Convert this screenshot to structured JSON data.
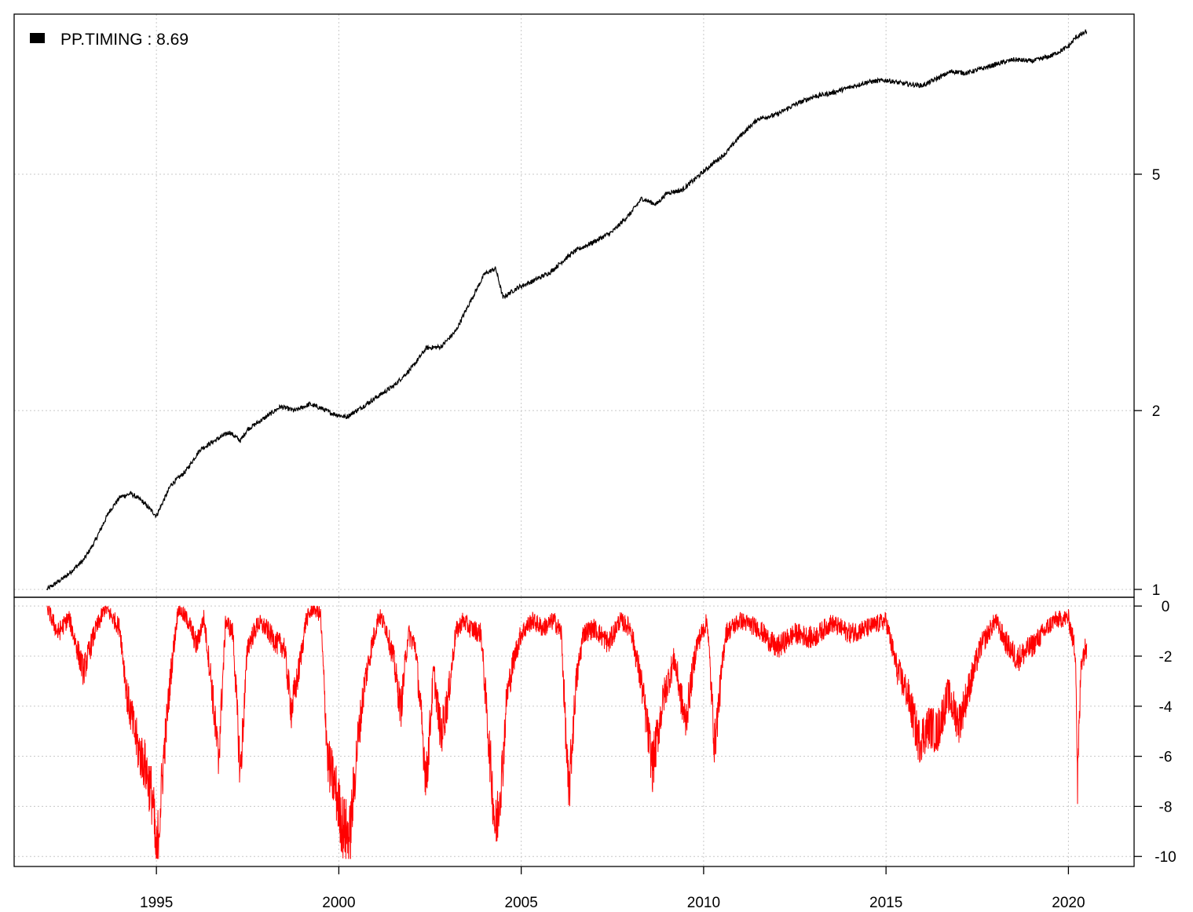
{
  "chart_data": [
    {
      "type": "line",
      "panel": "cumulative-performance",
      "yscale": "log",
      "ylim": [
        0.97,
        9.3
      ],
      "yticks": [
        1,
        2,
        5
      ],
      "ytick_labels": [
        "1",
        "2",
        "5"
      ],
      "grid": true,
      "legend": {
        "placement": "top-left",
        "label": "PP.TIMING : 8.69",
        "color": "#000000"
      },
      "series": [
        {
          "name": "PP.TIMING",
          "color": "#000000",
          "x": [
            1992.0,
            1992.5,
            1993.0,
            1993.3,
            1993.7,
            1994.0,
            1994.3,
            1994.6,
            1995.0,
            1995.4,
            1995.8,
            1996.2,
            1996.6,
            1997.0,
            1997.3,
            1997.5,
            1998.0,
            1998.4,
            1998.8,
            1999.2,
            1999.5,
            1999.8,
            2000.2,
            2000.6,
            2001.0,
            2001.5,
            2002.0,
            2002.4,
            2002.8,
            2003.2,
            2003.6,
            2004.0,
            2004.3,
            2004.5,
            2004.9,
            2005.3,
            2005.8,
            2006.2,
            2006.5,
            2007.0,
            2007.5,
            2008.0,
            2008.3,
            2008.7,
            2009.0,
            2009.4,
            2009.8,
            2010.2,
            2010.6,
            2011.0,
            2011.5,
            2012.0,
            2012.5,
            2013.0,
            2013.5,
            2014.0,
            2014.5,
            2015.0,
            2015.5,
            2016.0,
            2016.5,
            2016.8,
            2017.2,
            2017.6,
            2018.0,
            2018.5,
            2019.0,
            2019.5,
            2020.0,
            2020.2,
            2020.5
          ],
          "values": [
            1.0,
            1.05,
            1.12,
            1.2,
            1.35,
            1.43,
            1.45,
            1.41,
            1.33,
            1.5,
            1.58,
            1.72,
            1.78,
            1.84,
            1.78,
            1.86,
            1.95,
            2.03,
            2.0,
            2.05,
            2.02,
            1.98,
            1.95,
            2.02,
            2.1,
            2.2,
            2.36,
            2.55,
            2.56,
            2.72,
            3.05,
            3.4,
            3.47,
            3.1,
            3.22,
            3.3,
            3.42,
            3.6,
            3.72,
            3.85,
            4.0,
            4.3,
            4.55,
            4.45,
            4.65,
            4.7,
            4.93,
            5.18,
            5.42,
            5.8,
            6.2,
            6.3,
            6.55,
            6.75,
            6.85,
            7.0,
            7.15,
            7.2,
            7.1,
            7.05,
            7.3,
            7.45,
            7.4,
            7.52,
            7.65,
            7.8,
            7.75,
            7.9,
            8.2,
            8.5,
            8.69
          ]
        }
      ]
    },
    {
      "type": "area",
      "panel": "drawdown",
      "ylim": [
        -10.4,
        0.35
      ],
      "yticks": [
        0,
        -2,
        -4,
        -6,
        -8,
        -10
      ],
      "ytick_labels": [
        "0",
        "-2",
        "-4",
        "-6",
        "-8",
        "-10"
      ],
      "grid": true,
      "series": [
        {
          "name": "PP.TIMING drawdown",
          "color": "#ff0000",
          "x": [
            1992.0,
            1992.3,
            1992.6,
            1993.0,
            1993.3,
            1993.6,
            1994.0,
            1994.2,
            1994.5,
            1994.7,
            1994.9,
            1995.0,
            1995.2,
            1995.4,
            1995.6,
            1995.9,
            1996.1,
            1996.3,
            1996.5,
            1996.7,
            1996.9,
            1997.1,
            1997.3,
            1997.5,
            1997.8,
            1998.0,
            1998.3,
            1998.5,
            1998.7,
            1998.9,
            1999.1,
            1999.3,
            1999.5,
            1999.7,
            1999.9,
            2000.1,
            2000.3,
            2000.5,
            2000.7,
            2000.9,
            2001.1,
            2001.3,
            2001.5,
            2001.7,
            2001.9,
            2002.1,
            2002.4,
            2002.6,
            2002.8,
            2003.0,
            2003.2,
            2003.4,
            2003.6,
            2003.9,
            2004.1,
            2004.3,
            2004.5,
            2004.6,
            2004.8,
            2005.0,
            2005.3,
            2005.6,
            2005.9,
            2006.1,
            2006.3,
            2006.5,
            2006.7,
            2007.0,
            2007.4,
            2007.7,
            2008.0,
            2008.3,
            2008.6,
            2008.9,
            2009.2,
            2009.5,
            2009.8,
            2010.1,
            2010.3,
            2010.6,
            2011.0,
            2011.5,
            2012.0,
            2012.5,
            2013.0,
            2013.5,
            2014.0,
            2014.5,
            2015.0,
            2015.3,
            2015.6,
            2015.9,
            2016.2,
            2016.4,
            2016.7,
            2017.0,
            2017.3,
            2017.6,
            2018.0,
            2018.3,
            2018.6,
            2019.0,
            2019.3,
            2019.6,
            2020.0,
            2020.2,
            2020.25,
            2020.35,
            2020.5
          ],
          "values": [
            0,
            -1.0,
            -0.4,
            -2.5,
            -1.0,
            0,
            -0.8,
            -3.5,
            -5.5,
            -6.2,
            -7.5,
            -10.0,
            -5.8,
            -2.5,
            0,
            -0.6,
            -1.5,
            -0.4,
            -2.8,
            -6.0,
            -0.5,
            -1.0,
            -6.5,
            -1.5,
            -0.6,
            -0.8,
            -1.4,
            -1.5,
            -4.0,
            -2.5,
            -0.5,
            0,
            -0.3,
            -6.0,
            -7.0,
            -8.5,
            -9.0,
            -5.5,
            -3.0,
            -1.5,
            -0.3,
            -0.8,
            -2.0,
            -4.0,
            -1.0,
            -1.5,
            -6.8,
            -2.5,
            -5.0,
            -3.5,
            -1.0,
            -0.5,
            -0.8,
            -1.0,
            -5.0,
            -8.8,
            -6.0,
            -3.5,
            -2.0,
            -1.0,
            -0.5,
            -0.8,
            -0.5,
            -1.0,
            -7.4,
            -3.0,
            -1.0,
            -0.8,
            -1.4,
            -0.5,
            -0.8,
            -3.0,
            -6.2,
            -3.5,
            -2.0,
            -4.5,
            -1.5,
            -0.5,
            -5.4,
            -1.0,
            -0.5,
            -0.8,
            -1.6,
            -1.0,
            -1.2,
            -0.6,
            -1.0,
            -0.8,
            -0.5,
            -2.4,
            -3.4,
            -5.2,
            -4.6,
            -4.9,
            -3.4,
            -4.5,
            -3.0,
            -1.5,
            -0.5,
            -1.4,
            -2.0,
            -1.5,
            -1.0,
            -0.5,
            -0.4,
            -1.8,
            -6.9,
            -2.0,
            -1.5
          ]
        }
      ]
    },
    {
      "type": "axis",
      "panel": "shared-x",
      "xlim": [
        1991.1,
        2021.8
      ],
      "xticks": [
        1995,
        2000,
        2005,
        2010,
        2015,
        2020
      ],
      "xtick_labels": [
        "1995",
        "2000",
        "2005",
        "2010",
        "2015",
        "2020"
      ]
    }
  ]
}
